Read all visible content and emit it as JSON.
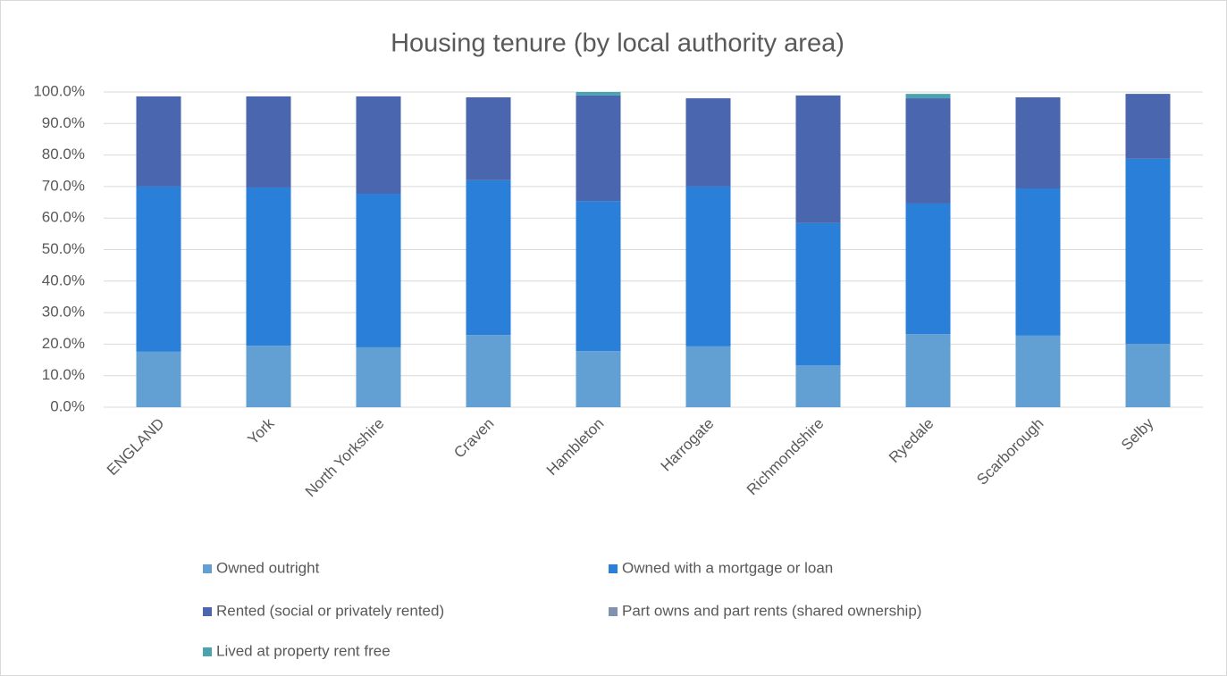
{
  "chart_data": {
    "type": "stacked_bar",
    "title": "Housing tenure (by local authority area)",
    "categories": [
      "ENGLAND",
      "York",
      "North Yorkshire",
      "Craven",
      "Hambleton",
      "Harrogate",
      "Richmondshire",
      "Ryedale",
      "Scarborough",
      "Selby"
    ],
    "series": [
      {
        "name": "Owned outright",
        "color": "#629fd3",
        "values": [
          17.6,
          19.5,
          19.0,
          22.9,
          17.8,
          19.3,
          13.3,
          23.2,
          22.7,
          20.1
        ]
      },
      {
        "name": "Owned with a mortgage or loan",
        "color": "#2a7fd8",
        "values": [
          52.4,
          50.2,
          48.7,
          49.1,
          47.6,
          50.7,
          45.1,
          41.4,
          46.7,
          58.7
        ]
      },
      {
        "name": "Rented (social or privately rented)",
        "color": "#4a66ae",
        "values": [
          28.6,
          28.9,
          30.9,
          26.3,
          33.5,
          28.0,
          40.5,
          33.4,
          28.9,
          20.6
        ]
      },
      {
        "name": "Part owns and part rents (shared ownership)",
        "color": "#7f92b0",
        "values": [
          0,
          0,
          0,
          0,
          0,
          0,
          0,
          0,
          0,
          0
        ]
      },
      {
        "name": "Lived at property rent free",
        "color": "#4ba3b0",
        "values": [
          0,
          0,
          0,
          0,
          1.1,
          0,
          0,
          1.4,
          0,
          0
        ]
      }
    ],
    "ylim": [
      0,
      100
    ],
    "yticks": [
      {
        "value": 0,
        "label": "0.0%"
      },
      {
        "value": 10,
        "label": "10.0%"
      },
      {
        "value": 20,
        "label": "20.0%"
      },
      {
        "value": 30,
        "label": "30.0%"
      },
      {
        "value": 40,
        "label": "40.0%"
      },
      {
        "value": 50,
        "label": "50.0%"
      },
      {
        "value": 60,
        "label": "60.0%"
      },
      {
        "value": 70,
        "label": "70.0%"
      },
      {
        "value": 80,
        "label": "80.0%"
      },
      {
        "value": 90,
        "label": "90.0%"
      },
      {
        "value": 100,
        "label": "100.0%"
      }
    ],
    "grid": true
  }
}
